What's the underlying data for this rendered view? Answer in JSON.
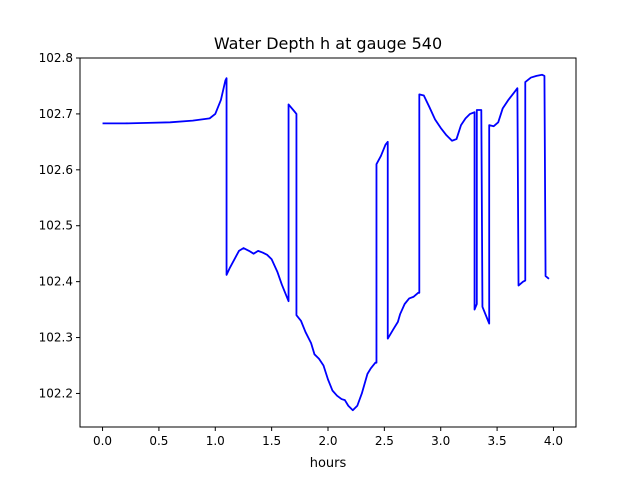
{
  "chart_data": {
    "type": "line",
    "title": "Water Depth h at gauge 540",
    "xlabel": "hours",
    "ylabel": "",
    "xlim": [
      -0.2,
      4.2
    ],
    "ylim": [
      102.14,
      102.8
    ],
    "xticks": [
      0.0,
      0.5,
      1.0,
      1.5,
      2.0,
      2.5,
      3.0,
      3.5,
      4.0
    ],
    "xtick_labels": [
      "0.0",
      "0.5",
      "1.0",
      "1.5",
      "2.0",
      "2.5",
      "3.0",
      "3.5",
      "4.0"
    ],
    "yticks": [
      102.2,
      102.3,
      102.4,
      102.5,
      102.6,
      102.7,
      102.8
    ],
    "ytick_labels": [
      "102.2",
      "102.3",
      "102.4",
      "102.5",
      "102.6",
      "102.7",
      "102.8"
    ],
    "grid": false,
    "legend": "none",
    "series": [
      {
        "color": "#0000ff",
        "points": [
          [
            0.0,
            102.683
          ],
          [
            0.2,
            102.683
          ],
          [
            0.4,
            102.684
          ],
          [
            0.6,
            102.685
          ],
          [
            0.8,
            102.688
          ],
          [
            0.95,
            102.692
          ],
          [
            1.0,
            102.7
          ],
          [
            1.05,
            102.725
          ],
          [
            1.09,
            102.76
          ],
          [
            1.1,
            102.764
          ],
          [
            1.1,
            102.412
          ],
          [
            1.13,
            102.425
          ],
          [
            1.17,
            102.44
          ],
          [
            1.21,
            102.455
          ],
          [
            1.25,
            102.46
          ],
          [
            1.3,
            102.455
          ],
          [
            1.34,
            102.45
          ],
          [
            1.38,
            102.455
          ],
          [
            1.42,
            102.452
          ],
          [
            1.46,
            102.448
          ],
          [
            1.5,
            102.44
          ],
          [
            1.55,
            102.418
          ],
          [
            1.59,
            102.395
          ],
          [
            1.62,
            102.38
          ],
          [
            1.65,
            102.365
          ],
          [
            1.65,
            102.717
          ],
          [
            1.7,
            102.705
          ],
          [
            1.72,
            102.7
          ],
          [
            1.72,
            102.34
          ],
          [
            1.76,
            102.33
          ],
          [
            1.8,
            102.31
          ],
          [
            1.85,
            102.29
          ],
          [
            1.88,
            102.27
          ],
          [
            1.92,
            102.262
          ],
          [
            1.96,
            102.25
          ],
          [
            2.0,
            102.225
          ],
          [
            2.04,
            102.205
          ],
          [
            2.08,
            102.196
          ],
          [
            2.12,
            102.19
          ],
          [
            2.15,
            102.188
          ],
          [
            2.18,
            102.178
          ],
          [
            2.22,
            102.17
          ],
          [
            2.26,
            102.178
          ],
          [
            2.3,
            102.2
          ],
          [
            2.35,
            102.235
          ],
          [
            2.38,
            102.245
          ],
          [
            2.42,
            102.255
          ],
          [
            2.43,
            102.255
          ],
          [
            2.43,
            102.61
          ],
          [
            2.47,
            102.625
          ],
          [
            2.51,
            102.645
          ],
          [
            2.53,
            102.65
          ],
          [
            2.53,
            102.298
          ],
          [
            2.58,
            102.315
          ],
          [
            2.62,
            102.328
          ],
          [
            2.64,
            102.342
          ],
          [
            2.68,
            102.36
          ],
          [
            2.72,
            102.37
          ],
          [
            2.76,
            102.373
          ],
          [
            2.8,
            102.38
          ],
          [
            2.81,
            102.38
          ],
          [
            2.81,
            102.735
          ],
          [
            2.85,
            102.733
          ],
          [
            2.9,
            102.712
          ],
          [
            2.95,
            102.69
          ],
          [
            3.0,
            102.675
          ],
          [
            3.05,
            102.662
          ],
          [
            3.1,
            102.652
          ],
          [
            3.14,
            102.655
          ],
          [
            3.18,
            102.68
          ],
          [
            3.22,
            102.692
          ],
          [
            3.26,
            102.7
          ],
          [
            3.3,
            102.703
          ],
          [
            3.3,
            102.35
          ],
          [
            3.32,
            102.36
          ],
          [
            3.32,
            102.707
          ],
          [
            3.36,
            102.707
          ],
          [
            3.37,
            102.355
          ],
          [
            3.41,
            102.335
          ],
          [
            3.43,
            102.325
          ],
          [
            3.43,
            102.68
          ],
          [
            3.47,
            102.678
          ],
          [
            3.51,
            102.685
          ],
          [
            3.55,
            102.71
          ],
          [
            3.6,
            102.725
          ],
          [
            3.65,
            102.738
          ],
          [
            3.68,
            102.746
          ],
          [
            3.69,
            102.393
          ],
          [
            3.73,
            102.4
          ],
          [
            3.75,
            102.402
          ],
          [
            3.75,
            102.757
          ],
          [
            3.8,
            102.765
          ],
          [
            3.85,
            102.768
          ],
          [
            3.9,
            102.77
          ],
          [
            3.92,
            102.768
          ],
          [
            3.93,
            102.41
          ],
          [
            3.96,
            102.405
          ]
        ]
      }
    ]
  }
}
